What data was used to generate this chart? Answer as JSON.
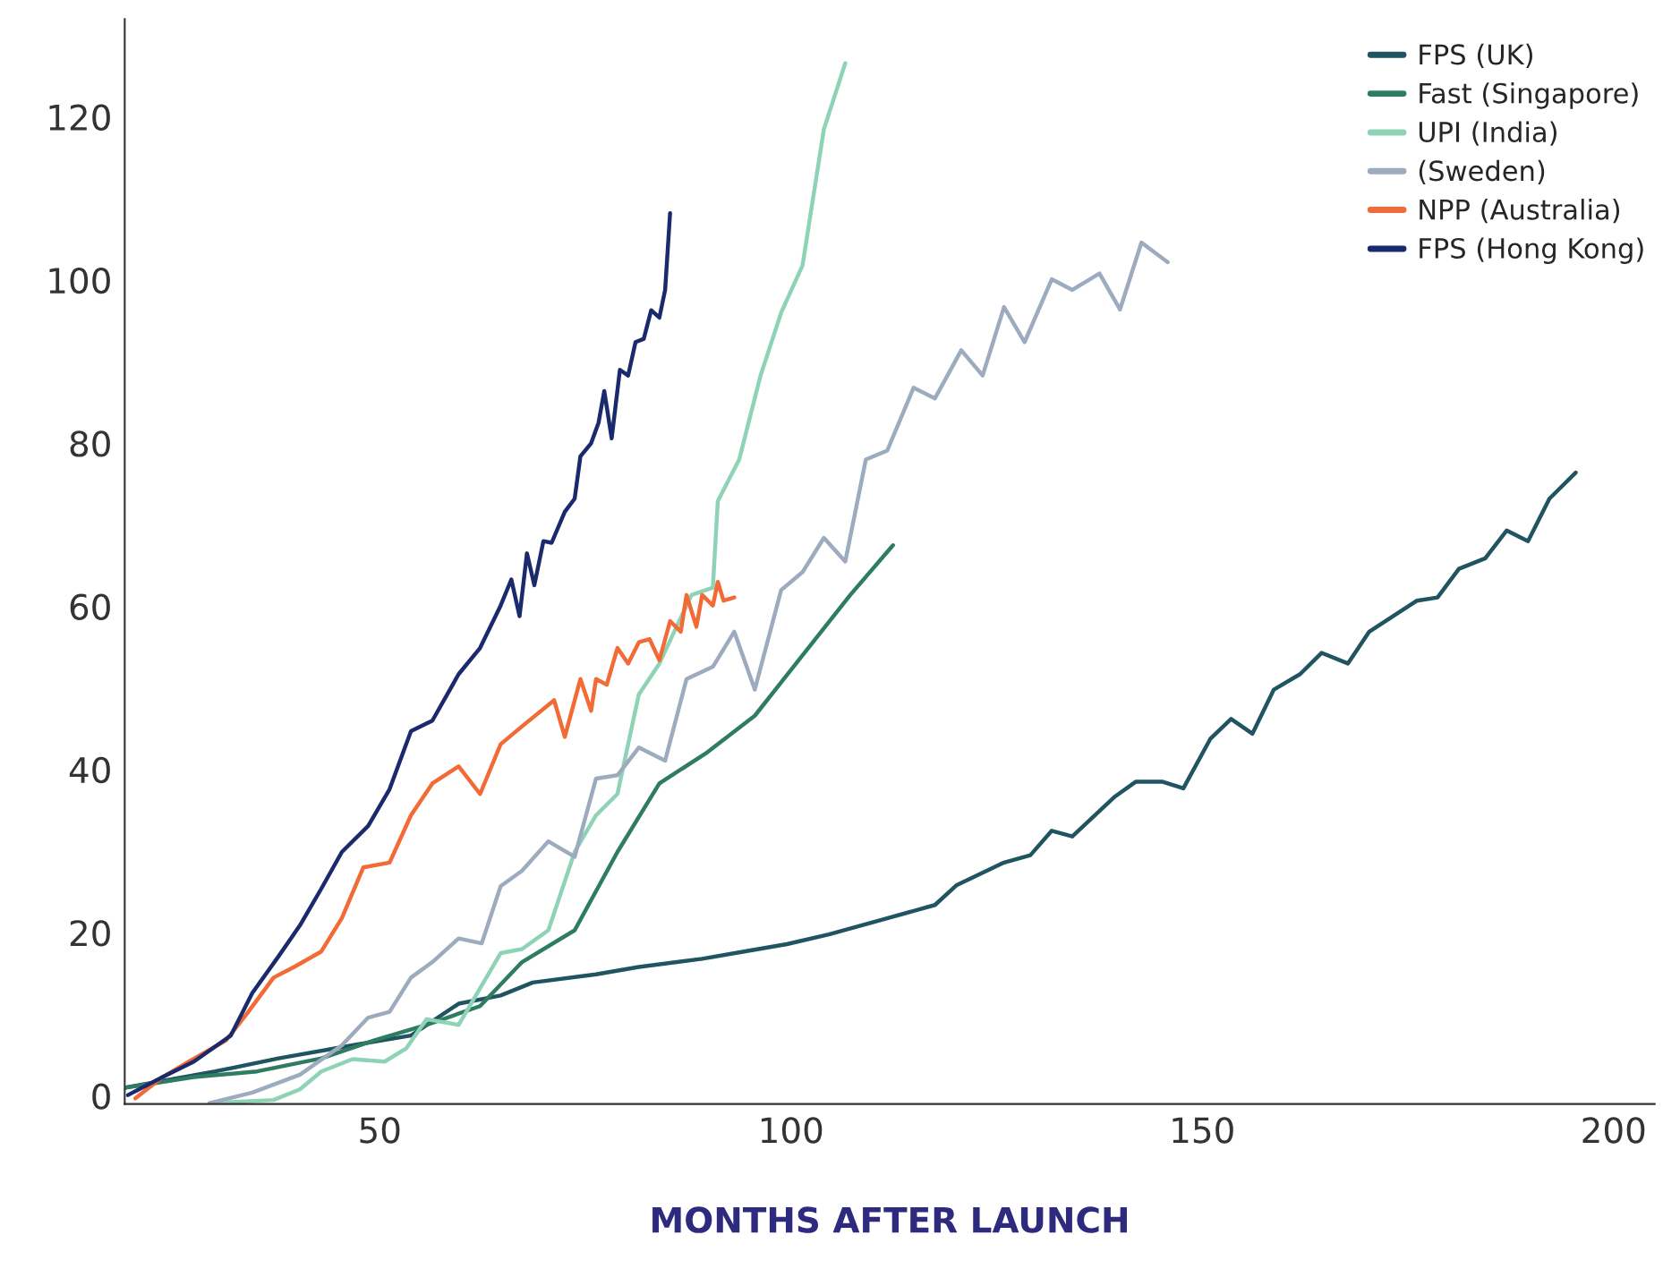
{
  "chart_data": {
    "type": "line",
    "xlabel": "MONTHS AFTER LAUNCH",
    "xlim": [
      19,
      205
    ],
    "ylim": [
      -1,
      132
    ],
    "xticks": [
      50,
      100,
      150,
      200
    ],
    "yticks": [
      0,
      20,
      40,
      60,
      80,
      100,
      120
    ],
    "grid": false,
    "legend": "top right",
    "line_style": "solid",
    "marker": "none",
    "series": [
      {
        "name": "FPS (UK)",
        "color": "#1f5460",
        "x": [
          19.0,
          30.0,
          37.7,
          46.7,
          53.8,
          59.6,
          64.7,
          68.6,
          76.3,
          81.5,
          89.2,
          94.3,
          99.5,
          104.6,
          111.1,
          117.5,
          120.1,
          125.9,
          129.1,
          131.7,
          134.2,
          139.4,
          141.9,
          145.2,
          147.7,
          151.0,
          153.5,
          156.1,
          158.7,
          161.9,
          164.5,
          167.7,
          170.3,
          176.1,
          178.6,
          181.2,
          184.4,
          187.0,
          189.6,
          192.2,
          195.4
        ],
        "values": [
          1.0,
          3.0,
          4.6,
          6.2,
          7.4,
          11.3,
          12.3,
          13.9,
          14.9,
          15.8,
          16.8,
          17.7,
          18.6,
          19.8,
          21.6,
          23.4,
          25.8,
          28.6,
          29.5,
          32.5,
          31.8,
          36.7,
          38.5,
          38.5,
          37.7,
          43.8,
          46.2,
          44.4,
          49.8,
          51.7,
          54.3,
          53.0,
          56.9,
          60.7,
          61.1,
          64.6,
          65.9,
          69.3,
          68.0,
          73.2,
          76.4
        ]
      },
      {
        "name": "Fast (Singapore)",
        "color": "#2e7d62",
        "x": [
          19.0,
          27.4,
          35.1,
          42.9,
          49.3,
          55.7,
          62.2,
          67.3,
          73.7,
          78.9,
          84.0,
          89.8,
          95.6,
          102.1,
          107.2,
          112.4
        ],
        "values": [
          1.0,
          2.3,
          3.0,
          4.6,
          6.8,
          8.7,
          11.0,
          16.4,
          20.3,
          29.9,
          38.3,
          42.1,
          46.6,
          54.9,
          61.4,
          67.5
        ]
      },
      {
        "name": "UPI (India)",
        "color": "#8ed3b6",
        "x": [
          29.3,
          37.1,
          40.3,
          42.9,
          46.7,
          50.6,
          53.2,
          55.7,
          59.6,
          64.7,
          67.3,
          70.5,
          73.7,
          76.3,
          78.9,
          81.5,
          84.0,
          87.9,
          90.5,
          91.1,
          93.7,
          96.3,
          98.8,
          101.4,
          104.0,
          106.6
        ],
        "values": [
          -0.9,
          -0.5,
          0.8,
          3.0,
          4.5,
          4.2,
          5.8,
          9.4,
          8.7,
          17.5,
          18.0,
          20.3,
          29.9,
          34.4,
          37.0,
          49.2,
          53.0,
          61.4,
          62.3,
          72.9,
          78.0,
          88.3,
          96.0,
          101.8,
          118.5,
          126.6
        ]
      },
      {
        "name": "(Sweden)",
        "color": "#9dabbf",
        "x": [
          29.3,
          34.5,
          40.3,
          45.4,
          48.6,
          51.2,
          53.8,
          56.4,
          59.6,
          62.4,
          64.7,
          67.3,
          70.5,
          73.7,
          76.3,
          78.9,
          81.5,
          84.7,
          87.3,
          90.5,
          93.1,
          95.6,
          98.8,
          101.4,
          104.0,
          106.6,
          109.1,
          111.7,
          114.9,
          117.5,
          120.7,
          123.3,
          125.9,
          128.4,
          131.7,
          134.2,
          137.5,
          140.0,
          142.6,
          145.8
        ],
        "values": [
          -0.9,
          0.4,
          2.6,
          6.2,
          9.6,
          10.3,
          14.5,
          16.4,
          19.3,
          18.7,
          25.7,
          27.6,
          31.2,
          29.3,
          38.9,
          39.3,
          42.7,
          41.1,
          51.1,
          52.6,
          56.9,
          49.8,
          62.0,
          64.2,
          68.4,
          65.5,
          78.0,
          79.1,
          86.8,
          85.5,
          91.4,
          88.3,
          96.7,
          92.4,
          100.1,
          98.8,
          100.8,
          96.4,
          104.6,
          102.2
        ]
      },
      {
        "name": "NPP (Australia)",
        "color": "#f26a35",
        "x": [
          20.3,
          23.6,
          26.8,
          31.3,
          33.8,
          37.1,
          39.6,
          42.9,
          45.4,
          48.0,
          51.2,
          53.8,
          56.4,
          59.6,
          62.2,
          64.7,
          67.3,
          71.2,
          72.5,
          74.4,
          75.7,
          76.3,
          77.6,
          78.9,
          80.2,
          81.5,
          82.8,
          84.0,
          85.3,
          86.6,
          87.3,
          88.5,
          89.2,
          90.5,
          91.1,
          91.8,
          93.1
        ],
        "values": [
          -0.3,
          2.3,
          4.2,
          6.8,
          10.0,
          14.5,
          15.8,
          17.7,
          21.8,
          28.0,
          28.6,
          34.4,
          38.3,
          40.4,
          37.0,
          43.1,
          45.3,
          48.5,
          44.0,
          51.1,
          47.2,
          51.1,
          50.4,
          54.9,
          53.0,
          55.6,
          56.0,
          53.4,
          58.2,
          56.9,
          61.4,
          57.5,
          61.4,
          60.1,
          63.0,
          60.7,
          61.1
        ]
      },
      {
        "name": "FPS (Hong Kong)",
        "color": "#1a2a6c",
        "x": [
          19.4,
          23.6,
          27.4,
          31.9,
          34.5,
          37.7,
          40.3,
          42.9,
          45.4,
          48.6,
          51.2,
          53.8,
          56.4,
          59.6,
          62.2,
          64.7,
          66.0,
          67.0,
          67.9,
          68.8,
          69.9,
          70.9,
          72.5,
          73.7,
          74.4,
          75.7,
          76.6,
          77.3,
          78.2,
          79.2,
          80.2,
          81.1,
          82.1,
          83.0,
          84.0,
          84.7,
          85.3
        ],
        "values": [
          0.1,
          2.3,
          4.2,
          7.4,
          12.6,
          17.1,
          20.9,
          25.4,
          29.9,
          33.1,
          37.6,
          44.7,
          46.0,
          51.7,
          54.9,
          60.1,
          63.3,
          58.8,
          66.5,
          62.6,
          68.0,
          67.8,
          71.6,
          73.2,
          78.4,
          80.0,
          82.5,
          86.4,
          80.6,
          89.0,
          88.3,
          92.4,
          92.8,
          96.3,
          95.4,
          98.8,
          108.2
        ]
      }
    ]
  }
}
